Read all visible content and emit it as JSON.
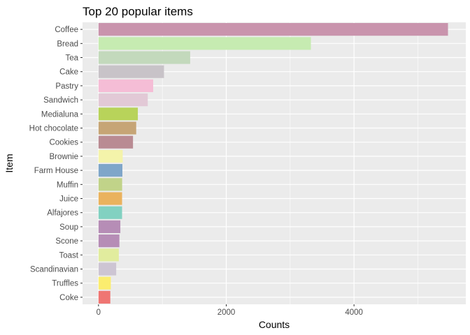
{
  "chart_data": {
    "type": "bar",
    "orientation": "horizontal",
    "title": "Top 20 popular items",
    "xlabel": "Counts",
    "ylabel": "Item",
    "categories": [
      "Coffee",
      "Bread",
      "Tea",
      "Cake",
      "Pastry",
      "Sandwich",
      "Medialuna",
      "Hot chocolate",
      "Cookies",
      "Brownie",
      "Farm House",
      "Muffin",
      "Juice",
      "Alfajores",
      "Soup",
      "Scone",
      "Toast",
      "Scandinavian",
      "Truffles",
      "Coke"
    ],
    "values": [
      5471,
      3325,
      1435,
      1025,
      856,
      771,
      616,
      590,
      540,
      379,
      374,
      370,
      369,
      369,
      342,
      327,
      318,
      277,
      193,
      185
    ],
    "colors": [
      "#c994ad",
      "#c6ebb1",
      "#c3d9bc",
      "#c8c3c8",
      "#f5bdd6",
      "#e2c9d6",
      "#b8d35a",
      "#c6a576",
      "#b98b93",
      "#f4f3aa",
      "#7fa6c9",
      "#c1d389",
      "#eab25e",
      "#82d1c1",
      "#b68db6",
      "#b68db6",
      "#e1ec9e",
      "#cdc5d3",
      "#fbed6f",
      "#ef7673"
    ],
    "xlim": [
      -250,
      5750
    ],
    "xticks": [
      0,
      2000,
      4000
    ],
    "xtick_labels": [
      "0",
      "2000",
      "4000"
    ],
    "grid": true,
    "panel_background": "#ebebeb",
    "grid_color": "#ffffff"
  }
}
